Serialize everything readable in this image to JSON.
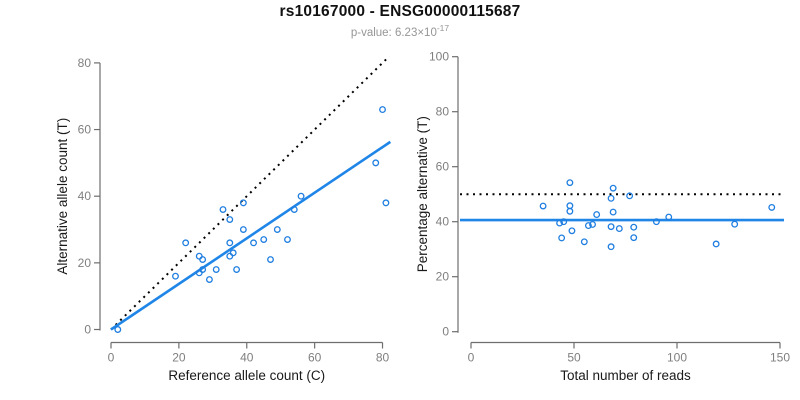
{
  "header": {
    "title": "rs10167000 - ENSG00000115687",
    "pvalue_prefix": "p-value: 6.23×10",
    "pvalue_exponent": "-17"
  },
  "colors": {
    "point_blue": "#1f7ee0",
    "line_blue": "#1f86e8",
    "dotted_black": "#000000",
    "axis_gray": "#6e6e6e",
    "tick_text_gray": "#7f7f7f",
    "axis_title_black": "#1a1a1a",
    "subtitle_gray": "#969696"
  },
  "chart_data": [
    {
      "type": "scatter",
      "name": "allele-counts-scatter",
      "xlabel": "Reference allele count (C)",
      "ylabel": "Alternative allele count (T)",
      "xlim": [
        0,
        80
      ],
      "ylim": [
        0,
        80
      ],
      "xticks": [
        0,
        20,
        40,
        60,
        80
      ],
      "yticks": [
        0,
        20,
        40,
        60,
        80
      ],
      "grid": false,
      "legend": "none",
      "marker": "open-circle",
      "points": [
        [
          2,
          0
        ],
        [
          19,
          16
        ],
        [
          22,
          26
        ],
        [
          26,
          17
        ],
        [
          26,
          22
        ],
        [
          27,
          18
        ],
        [
          27,
          21
        ],
        [
          29,
          15
        ],
        [
          31,
          18
        ],
        [
          33,
          36
        ],
        [
          35,
          22
        ],
        [
          35,
          26
        ],
        [
          35,
          33
        ],
        [
          36,
          23
        ],
        [
          37,
          18
        ],
        [
          39,
          30
        ],
        [
          39,
          38
        ],
        [
          42,
          26
        ],
        [
          45,
          27
        ],
        [
          47,
          21
        ],
        [
          49,
          30
        ],
        [
          52,
          27
        ],
        [
          54,
          36
        ],
        [
          56,
          40
        ],
        [
          78,
          50
        ],
        [
          80,
          66
        ],
        [
          81,
          38
        ]
      ],
      "lines": [
        {
          "name": "identity-line",
          "style": "dotted",
          "color": "#000000",
          "from": [
            0,
            0
          ],
          "to": [
            82,
            82
          ],
          "slope": 1
        },
        {
          "name": "regression-line",
          "style": "solid",
          "color": "#1f86e8",
          "from": [
            0,
            0
          ],
          "to": [
            82.3,
            56.3
          ],
          "slope": 0.684
        }
      ]
    },
    {
      "type": "scatter",
      "name": "percentage-vs-coverage-scatter",
      "xlabel": "Total number of reads",
      "ylabel": "Percentage alternative (T)",
      "xlim": [
        0,
        150
      ],
      "ylim": [
        0,
        100
      ],
      "xticks": [
        0,
        50,
        100,
        150
      ],
      "yticks": [
        0,
        20,
        40,
        60,
        80,
        100
      ],
      "grid": false,
      "legend": "none",
      "marker": "open-circle",
      "points": [
        [
          35,
          45.7
        ],
        [
          43,
          39.5
        ],
        [
          44,
          34.1
        ],
        [
          45,
          40
        ],
        [
          48,
          43.8
        ],
        [
          48,
          45.8
        ],
        [
          48,
          54.2
        ],
        [
          49,
          36.7
        ],
        [
          55,
          32.7
        ],
        [
          57,
          38.6
        ],
        [
          59,
          39
        ],
        [
          61,
          42.6
        ],
        [
          68,
          30.9
        ],
        [
          68,
          38.2
        ],
        [
          68,
          48.5
        ],
        [
          69,
          43.5
        ],
        [
          69,
          52.2
        ],
        [
          72,
          37.5
        ],
        [
          77,
          49.4
        ],
        [
          79,
          34.2
        ],
        [
          79,
          38
        ],
        [
          90,
          40
        ],
        [
          96,
          41.7
        ],
        [
          119,
          31.9
        ],
        [
          128,
          39.1
        ],
        [
          146,
          45.2
        ]
      ],
      "lines": [
        {
          "name": "balance-50pct-line",
          "style": "dotted",
          "color": "#000000",
          "y": 50
        },
        {
          "name": "mean-percentage-line",
          "style": "solid",
          "color": "#1f86e8",
          "y": 40.6
        }
      ]
    }
  ]
}
